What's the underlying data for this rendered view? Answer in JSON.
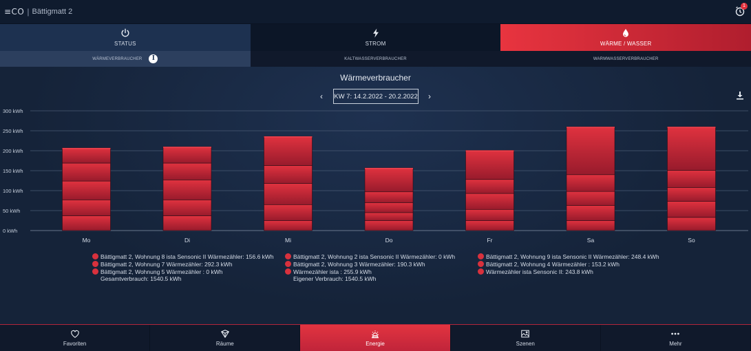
{
  "header": {
    "logo": "≡CO",
    "title": "Bättigmatt 2",
    "alarm_badge": "1"
  },
  "main_tabs": [
    {
      "label": "STATUS",
      "icon": "power-icon"
    },
    {
      "label": "STROM",
      "icon": "lightning-icon"
    },
    {
      "label": "WÄRME / WASSER",
      "icon": "drop-icon"
    }
  ],
  "sub_tabs": [
    {
      "label": "WÄRMEVERBRAUCHER"
    },
    {
      "label": "KALTWASSERVERBRAUCHER"
    },
    {
      "label": "WARMWASSERVERBRAUCHER"
    }
  ],
  "week_label": "KW 7: 14.2.2022 - 20.2.2022",
  "colors": {
    "accent": "#e8343f",
    "bar": "#c8283a",
    "background": "#152339"
  },
  "chart_data": {
    "type": "bar",
    "stacked": true,
    "title": "Wärmeverbraucher",
    "categories": [
      "Mo",
      "Di",
      "Mi",
      "Do",
      "Fr",
      "Sa",
      "So"
    ],
    "totals": [
      207,
      210,
      236,
      157,
      201,
      260,
      260
    ],
    "segment_values": [
      [
        37,
        37,
        25,
        25,
        25,
        25,
        33
      ],
      [
        40,
        40,
        40,
        20,
        28,
        38,
        40
      ],
      [
        47,
        50,
        53,
        25,
        40,
        35,
        35
      ],
      [
        45,
        42,
        45,
        27,
        35,
        42,
        43
      ],
      [
        38,
        41,
        73,
        60,
        73,
        120,
        109
      ]
    ],
    "yticks": [
      "0 kWh",
      "50 kWh",
      "100 kWh",
      "150 kWh",
      "200 kWh",
      "250 kWh",
      "300 kWh"
    ],
    "ylim": [
      0,
      300
    ],
    "grid": true
  },
  "legend": {
    "col1": [
      "Bättigmatt 2, Wohnung 8 ista Sensonic II Wärmezähler: 156.6 kWh",
      "Bättigmatt 2, Wohnung 7 Wärmezähler: 292.3 kWh",
      "Bättigmatt 2, Wohnung 5 Wärmezähler : 0 kWh"
    ],
    "col1_total": "Gesamtverbrauch: 1540.5 kWh",
    "col2": [
      "Bättigmatt 2, Wohnung 2 ista Sensonic II Wärmezähler: 0 kWh",
      "Bättigmatt 2, Wohnung 3 Wärmezähler: 190.3 kWh",
      "Wärmezähler ista : 255.9 kWh"
    ],
    "col2_total": "Eigener Verbrauch: 1540.5 kWh",
    "col3": [
      "Bättigmatt 2, Wohnung 9 ista Sensonic II Wärmezähler: 248.4 kWh",
      "Bättigmatt 2, Wohnung 4 Wärmezähler : 153.2 kWh",
      "Wärmezähler ista Sensonic II: 243.8 kWh"
    ]
  },
  "bottom_nav": [
    {
      "label": "Favoriten",
      "icon": "heart-icon"
    },
    {
      "label": "Räume",
      "icon": "cube-icon"
    },
    {
      "label": "Energie",
      "icon": "energy-icon"
    },
    {
      "label": "Szenen",
      "icon": "image-icon"
    },
    {
      "label": "Mehr",
      "icon": "more-icon"
    }
  ]
}
